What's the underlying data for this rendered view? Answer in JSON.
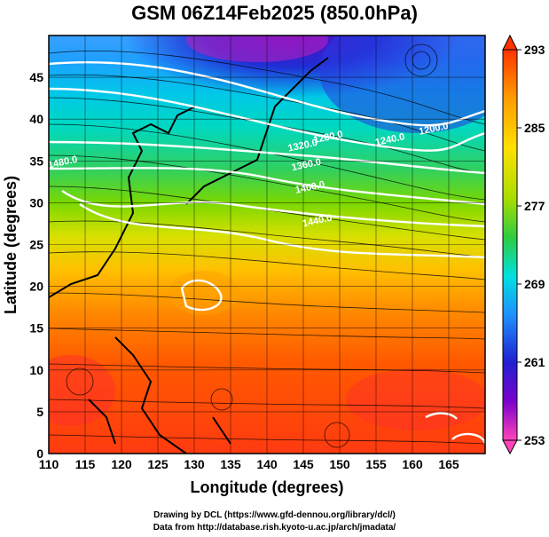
{
  "title": "GSM 06Z14Feb2025 (850.0hPa)",
  "credits": [
    "Drawing by DCL (https://www.gfd-dennou.org/library/dcl/)",
    "Data from http://database.rish.kyoto-u.ac.jp/arch/jmadata/"
  ],
  "map": {
    "xlabel": "Longitude (degrees)",
    "ylabel": "Latitude  (degrees)",
    "xlim": [
      110,
      170
    ],
    "ylim": [
      0,
      50
    ],
    "x_ticks": [
      110,
      115,
      120,
      125,
      130,
      135,
      140,
      145,
      150,
      155,
      160,
      165
    ],
    "y_ticks": [
      0,
      5,
      10,
      15,
      20,
      25,
      30,
      35,
      40,
      45
    ],
    "grid": true,
    "field": "temperature (K) shaded, geopotential height contours, wind streamlines",
    "colorbar": {
      "min": 253,
      "max": 293,
      "ticks": [
        "293",
        "285",
        "277",
        "269",
        "261",
        "253"
      ],
      "colors": [
        "#ff44bb",
        "#7a00cc",
        "#2020d0",
        "#1e90ff",
        "#00e0e0",
        "#2ecc40",
        "#aadd00",
        "#ffe000",
        "#ff9900",
        "#ff3300"
      ]
    },
    "contour_labels": [
      {
        "text": "1200.0",
        "lon": 163,
        "lat": 38.5
      },
      {
        "text": "1240.0",
        "lon": 157,
        "lat": 37.2
      },
      {
        "text": "1280.0",
        "lon": 148.5,
        "lat": 37.5
      },
      {
        "text": "1320.0",
        "lon": 145,
        "lat": 36.5
      },
      {
        "text": "1360.0",
        "lon": 145.5,
        "lat": 34.2
      },
      {
        "text": "1400.0",
        "lon": 146,
        "lat": 31.5
      },
      {
        "text": "1440.0",
        "lon": 147,
        "lat": 27.5
      },
      {
        "text": "1480.0",
        "lon": 112,
        "lat": 34.5
      }
    ]
  }
}
